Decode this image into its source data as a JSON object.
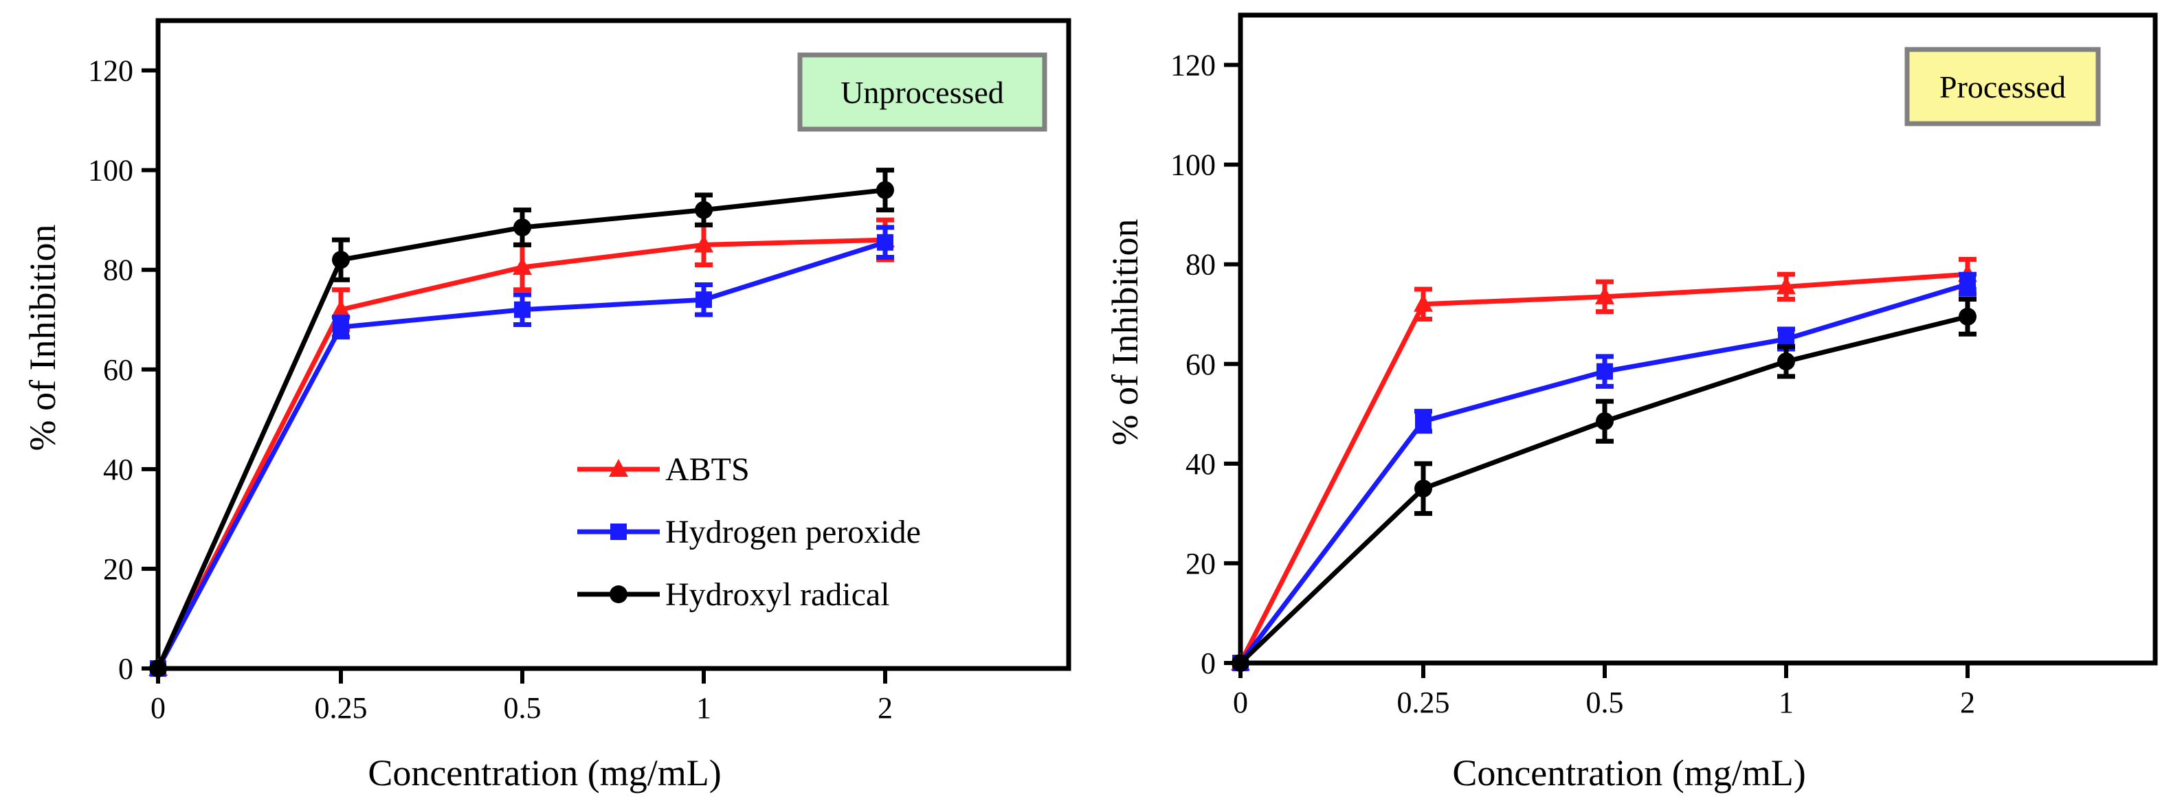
{
  "chart_data": [
    {
      "type": "line",
      "title": "Unprocessed",
      "title_color": "#c6f7c6",
      "xlabel": "Concentration (mg/mL)",
      "ylabel": "% of Inhibition",
      "categories": [
        "0",
        "0.25",
        "0.5",
        "1",
        "2"
      ],
      "ylim": [
        0,
        130
      ],
      "yticks": [
        "0",
        "20",
        "40",
        "60",
        "80",
        "100",
        "120"
      ],
      "legend_position": "center-right",
      "series": [
        {
          "name": "ABTS",
          "color": "#ff1a1a",
          "marker": "triangle",
          "values": [
            0,
            72,
            80.5,
            85,
            86
          ],
          "errors": [
            0,
            4,
            4.5,
            4,
            4
          ]
        },
        {
          "name": "Hydrogen peroxide",
          "color": "#1a1aff",
          "marker": "square",
          "values": [
            0,
            68.5,
            72,
            74,
            85.5
          ],
          "errors": [
            0,
            2,
            3,
            3,
            3
          ]
        },
        {
          "name": "Hydroxyl radical",
          "color": "#000000",
          "marker": "circle",
          "values": [
            0,
            82,
            88.5,
            92,
            96
          ],
          "errors": [
            0,
            4,
            3.5,
            3,
            4
          ]
        }
      ]
    },
    {
      "type": "line",
      "title": "Processed",
      "title_color": "#fbf79a",
      "xlabel": "Concentration (mg/mL)",
      "ylabel": "% of Inhibition",
      "categories": [
        "0",
        "0.25",
        "0.5",
        "1",
        "2"
      ],
      "ylim": [
        0,
        130
      ],
      "yticks": [
        "0",
        "20",
        "40",
        "60",
        "80",
        "100",
        "120"
      ],
      "series": [
        {
          "name": "ABTS",
          "color": "#ff1a1a",
          "marker": "triangle",
          "values": [
            0,
            72,
            73.5,
            75.5,
            78
          ],
          "errors": [
            0,
            3,
            3,
            2.5,
            3
          ]
        },
        {
          "name": "Hydrogen peroxide",
          "color": "#1a1aff",
          "marker": "square",
          "values": [
            0,
            48.5,
            58.5,
            65,
            76
          ],
          "errors": [
            0,
            2,
            3,
            2,
            2
          ]
        },
        {
          "name": "Hydroxyl radical",
          "color": "#000000",
          "marker": "circle",
          "values": [
            0,
            35,
            48.5,
            60.5,
            69.5
          ],
          "errors": [
            0,
            5,
            4,
            3,
            3.5
          ]
        }
      ]
    }
  ]
}
